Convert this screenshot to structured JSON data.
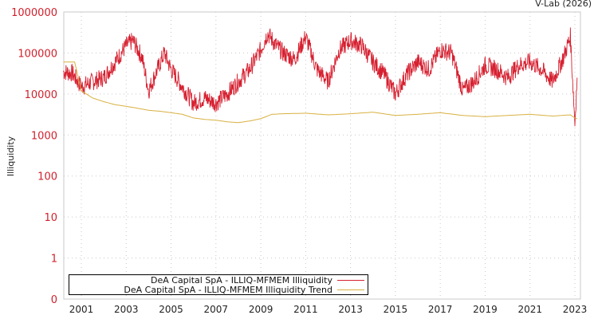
{
  "credit": "V-Lab (2026)",
  "chart_data": {
    "type": "line",
    "title": "",
    "xlabel": "",
    "ylabel": "Illiquidity",
    "yscale": "log",
    "ylim": [
      0,
      1000000
    ],
    "y_ticks": [
      "1000000",
      "100000",
      "10000",
      "1000",
      "100",
      "10",
      "1",
      "0"
    ],
    "x_ticks": [
      "2001",
      "2003",
      "2005",
      "2007",
      "2009",
      "2011",
      "2013",
      "2015",
      "2017",
      "2019",
      "2021",
      "2023"
    ],
    "grid": true,
    "legend_position": "bottom-left inside",
    "series": [
      {
        "name": "DeA Capital SpA - ILLIQ-MFMEM Illiquidity",
        "color": "#d62030",
        "x": [
          2000.2,
          2000.6,
          2001.0,
          2001.5,
          2002.0,
          2002.5,
          2003.0,
          2003.3,
          2003.7,
          2004.0,
          2004.3,
          2004.7,
          2005.0,
          2005.5,
          2006.0,
          2006.5,
          2007.0,
          2007.5,
          2008.0,
          2008.5,
          2009.0,
          2009.3,
          2009.7,
          2010.0,
          2010.5,
          2011.0,
          2011.5,
          2012.0,
          2012.5,
          2013.0,
          2013.5,
          2014.0,
          2014.5,
          2015.0,
          2015.5,
          2016.0,
          2016.5,
          2017.0,
          2017.5,
          2018.0,
          2018.5,
          2019.0,
          2019.5,
          2020.0,
          2020.5,
          2021.0,
          2021.5,
          2022.0,
          2022.5,
          2022.8,
          2023.0,
          2023.1
        ],
        "values": [
          35000,
          32000,
          15000,
          20000,
          25000,
          60000,
          150000,
          200000,
          80000,
          12000,
          30000,
          100000,
          40000,
          15000,
          6000,
          8000,
          6000,
          10000,
          20000,
          40000,
          120000,
          300000,
          150000,
          100000,
          70000,
          250000,
          40000,
          20000,
          120000,
          200000,
          150000,
          60000,
          30000,
          10000,
          30000,
          60000,
          40000,
          120000,
          100000,
          12000,
          20000,
          50000,
          40000,
          25000,
          50000,
          60000,
          40000,
          20000,
          80000,
          250000,
          2000,
          25000
        ]
      },
      {
        "name": "DeA Capital SpA - ILLIQ-MFMEM Illiquidity Trend",
        "color": "#d8b040",
        "x": [
          2000.2,
          2000.7,
          2001.0,
          2001.5,
          2002.0,
          2002.5,
          2003.0,
          2003.5,
          2004.0,
          2004.5,
          2005.0,
          2005.5,
          2006.0,
          2006.5,
          2007.0,
          2007.5,
          2008.0,
          2008.5,
          2009.0,
          2009.5,
          2010.0,
          2011.0,
          2012.0,
          2013.0,
          2014.0,
          2015.0,
          2016.0,
          2017.0,
          2018.0,
          2019.0,
          2020.0,
          2021.0,
          2022.0,
          2022.8,
          2023.0,
          2023.1
        ],
        "values": [
          60000,
          60000,
          12000,
          8000,
          6500,
          5500,
          5000,
          4500,
          4000,
          3800,
          3500,
          3200,
          2600,
          2400,
          2300,
          2100,
          2000,
          2200,
          2500,
          3200,
          3300,
          3400,
          3100,
          3300,
          3600,
          3000,
          3200,
          3500,
          3000,
          2800,
          3000,
          3200,
          2900,
          3100,
          2600,
          2500
        ]
      }
    ]
  },
  "legend": {
    "items": [
      {
        "label": "DeA Capital SpA - ILLIQ-MFMEM Illiquidity",
        "color": "#d62030"
      },
      {
        "label": "DeA Capital SpA - ILLIQ-MFMEM Illiquidity Trend",
        "color": "#d8b040"
      }
    ]
  }
}
